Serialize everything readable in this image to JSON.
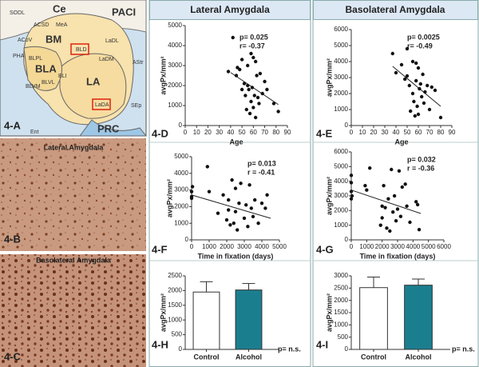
{
  "columns": [
    "Lateral Amygdala",
    "Basolateral Amygdala"
  ],
  "panels": {
    "a": {
      "label": "4-A",
      "regions": [
        "SODL",
        "Ce",
        "PACI",
        "ACSD",
        "MeA",
        "ACoV",
        "BM",
        "BLD",
        "LaDL",
        "BLA",
        "LaDM",
        "AStr",
        "LA",
        "LaDA",
        "PRC",
        "Ent",
        "SEp",
        "BLI",
        "BLVL",
        "BLPL",
        "BLVM",
        "PHA"
      ]
    },
    "b": {
      "label": "4-B",
      "title": "Lateral Amygdala"
    },
    "c": {
      "label": "4-C",
      "title": "Basolateral Amygdala"
    }
  },
  "chart_data": [
    {
      "type": "scatter",
      "panel": "4-D",
      "x_label": "Age",
      "y_label": "avgPx/mm²",
      "annotations": [
        "p= 0.025",
        "r= -0.37"
      ],
      "color": "#111111",
      "x": [
        38,
        42,
        45,
        46,
        48,
        50,
        50,
        52,
        53,
        54,
        55,
        55,
        56,
        57,
        58,
        58,
        59,
        60,
        60,
        61,
        62,
        62,
        63,
        64,
        65,
        66,
        68,
        70,
        72,
        78,
        82
      ],
      "values": [
        2700,
        4400,
        2500,
        2900,
        2800,
        3300,
        1800,
        2100,
        1500,
        800,
        2000,
        3000,
        1800,
        600,
        3600,
        1200,
        1900,
        3400,
        900,
        1500,
        3200,
        400,
        2500,
        1400,
        1100,
        2600,
        1600,
        2200,
        1800,
        1100,
        700
      ],
      "trendline": {
        "x": [
          40,
          82
        ],
        "y": [
          2650,
          1050
        ]
      },
      "xlim": [
        0,
        90
      ],
      "xticks": [
        0,
        10,
        20,
        30,
        40,
        50,
        60,
        70,
        80,
        90
      ],
      "ylim": [
        0,
        5000
      ],
      "yticks": [
        0,
        1000,
        2000,
        3000,
        4000,
        5000
      ]
    },
    {
      "type": "scatter",
      "panel": "4-E",
      "x_label": "Age",
      "y_label": "avgPx/mm²",
      "annotations": [
        "p= 0.0025",
        "r= -0.49"
      ],
      "color": "#111111",
      "x": [
        37,
        40,
        45,
        48,
        50,
        50,
        52,
        53,
        55,
        55,
        56,
        57,
        58,
        58,
        59,
        60,
        60,
        61,
        62,
        63,
        64,
        65,
        66,
        68,
        70,
        72,
        75,
        80
      ],
      "values": [
        4500,
        3300,
        3800,
        2900,
        4800,
        3100,
        2500,
        900,
        4000,
        2000,
        1500,
        600,
        3900,
        2800,
        1200,
        3600,
        700,
        2300,
        2600,
        1800,
        3200,
        1400,
        2100,
        2500,
        1000,
        2400,
        2200,
        500
      ],
      "trendline": {
        "x": [
          37,
          80
        ],
        "y": [
          3700,
          1200
        ]
      },
      "xlim": [
        0,
        90
      ],
      "xticks": [
        0,
        10,
        20,
        30,
        40,
        50,
        60,
        70,
        80,
        90
      ],
      "ylim": [
        0,
        6000
      ],
      "yticks": [
        0,
        1000,
        2000,
        3000,
        4000,
        5000,
        6000
      ]
    },
    {
      "type": "scatter",
      "panel": "4-F",
      "x_label": "Time in fixation (days)",
      "y_label": "avgPx/mm²",
      "annotations": [
        "p= 0.013",
        "r = -0.41"
      ],
      "color": "#111111",
      "x": [
        0,
        0,
        0,
        50,
        900,
        1000,
        1500,
        1800,
        2000,
        2100,
        2100,
        2200,
        2300,
        2400,
        2500,
        2500,
        2600,
        2700,
        2800,
        3000,
        3100,
        3200,
        3300,
        3400,
        3500,
        3600,
        3800,
        4000,
        4200,
        4300
      ],
      "values": [
        2900,
        2600,
        2500,
        3200,
        4400,
        2900,
        1600,
        2700,
        1200,
        2400,
        1800,
        900,
        3600,
        1000,
        3100,
        1700,
        600,
        2200,
        3400,
        1300,
        2100,
        800,
        3300,
        1900,
        1400,
        2400,
        1000,
        2200,
        1900,
        2700
      ],
      "trendline": {
        "x": [
          0,
          4500
        ],
        "y": [
          2700,
          1300
        ]
      },
      "xlim": [
        0,
        5000
      ],
      "xticks": [
        0,
        1000,
        2000,
        3000,
        4000,
        5000
      ],
      "ylim": [
        0,
        5000
      ],
      "yticks": [
        0,
        1000,
        2000,
        3000,
        4000,
        5000
      ]
    },
    {
      "type": "scatter",
      "panel": "4-G",
      "x_label": "Time in fixation (days)",
      "y_label": "avgPx/mm²",
      "annotations": [
        "p= 0.032",
        "r = -0.36"
      ],
      "color": "#111111",
      "x": [
        0,
        0,
        0,
        0,
        50,
        900,
        1000,
        1200,
        1900,
        2000,
        2000,
        2100,
        2200,
        2300,
        2400,
        2500,
        2600,
        2700,
        2800,
        2900,
        3000,
        3100,
        3200,
        3300,
        3500,
        3600,
        3800,
        4200,
        4300,
        4400
      ],
      "values": [
        4400,
        3900,
        3300,
        2800,
        3000,
        3700,
        3400,
        4900,
        1000,
        2300,
        1500,
        3700,
        2200,
        800,
        2800,
        600,
        4800,
        1900,
        3000,
        1300,
        2100,
        4700,
        1600,
        3600,
        3800,
        2300,
        1200,
        2600,
        2400,
        700
      ],
      "trendline": {
        "x": [
          0,
          4500
        ],
        "y": [
          3400,
          1800
        ]
      },
      "xlim": [
        0,
        6000
      ],
      "xticks": [
        0,
        1000,
        2000,
        3000,
        4000,
        5000,
        6000
      ],
      "ylim": [
        0,
        6000
      ],
      "yticks": [
        0,
        1000,
        2000,
        3000,
        4000,
        5000,
        6000
      ]
    },
    {
      "type": "bar",
      "panel": "4-H",
      "y_label": "avgPx/mm²",
      "annotations": [
        "p= n.s."
      ],
      "categories": [
        "Control",
        "Alcohol"
      ],
      "values": [
        1950,
        2020
      ],
      "errors": [
        350,
        220
      ],
      "colors": [
        "#ffffff",
        "#1b7e8f"
      ],
      "ylim": [
        0,
        2500
      ],
      "yticks": [
        0,
        500,
        1000,
        1500,
        2000,
        2500
      ]
    },
    {
      "type": "bar",
      "panel": "4-I",
      "y_label": "avgPx/mm²",
      "annotations": [
        "p= n.s."
      ],
      "categories": [
        "Control",
        "Alcohol"
      ],
      "values": [
        2520,
        2620
      ],
      "errors": [
        430,
        250
      ],
      "colors": [
        "#ffffff",
        "#1b7e8f"
      ],
      "ylim": [
        0,
        3000
      ],
      "yticks": [
        0,
        500,
        1000,
        1500,
        2000,
        2500,
        3000
      ]
    }
  ]
}
